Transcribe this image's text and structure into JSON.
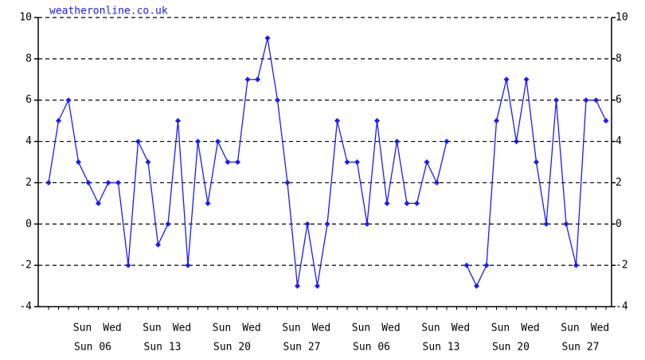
{
  "chart_data": {
    "type": "line",
    "title": "weatheronline.co.uk",
    "categories": [
      null,
      null,
      null,
      "Sun 06",
      null,
      null,
      null,
      null,
      null,
      null,
      "Sun 13",
      null,
      null,
      null,
      null,
      null,
      null,
      "Sun 20",
      null,
      null,
      null,
      null,
      null,
      null,
      "Sun 27",
      null,
      null,
      null,
      null,
      null,
      null,
      "Sun 06",
      null,
      null,
      null,
      null,
      null,
      null,
      "Sun 13",
      null,
      null,
      null,
      null,
      null,
      null,
      "Sun 20",
      null,
      null,
      null,
      null,
      null,
      null,
      "Sun 27",
      null,
      null,
      null,
      null
    ],
    "day_labels": [
      null,
      null,
      null,
      "Sun",
      null,
      null,
      "Wed",
      null,
      null,
      null,
      "Sun",
      null,
      null,
      "Wed",
      null,
      null,
      null,
      "Sun",
      null,
      null,
      "Wed",
      null,
      null,
      null,
      "Sun",
      null,
      null,
      "Wed",
      null,
      null,
      null,
      "Sun",
      null,
      null,
      "Wed",
      null,
      null,
      null,
      "Sun",
      null,
      null,
      "Wed",
      null,
      null,
      null,
      "Sun",
      null,
      null,
      "Wed",
      null,
      null,
      null,
      "Sun",
      null,
      null,
      "Wed",
      null
    ],
    "values": [
      2,
      5,
      6,
      3,
      2,
      1,
      2,
      2,
      -2,
      4,
      3,
      -1,
      0,
      5,
      -2,
      4,
      1,
      4,
      3,
      3,
      7,
      7,
      9,
      6,
      2,
      -3,
      0,
      -3,
      0,
      5,
      3,
      3,
      0,
      5,
      1,
      4,
      1,
      1,
      3,
      2,
      4,
      null,
      -2,
      -3,
      -2,
      5,
      7,
      4,
      7,
      3,
      0,
      6,
      0,
      -2,
      6,
      6,
      5
    ],
    "color": "#1a1aff",
    "ylim": [
      -4,
      10
    ],
    "yticks": [
      -4,
      -2,
      0,
      2,
      4,
      6,
      8,
      10
    ],
    "grid": true
  }
}
